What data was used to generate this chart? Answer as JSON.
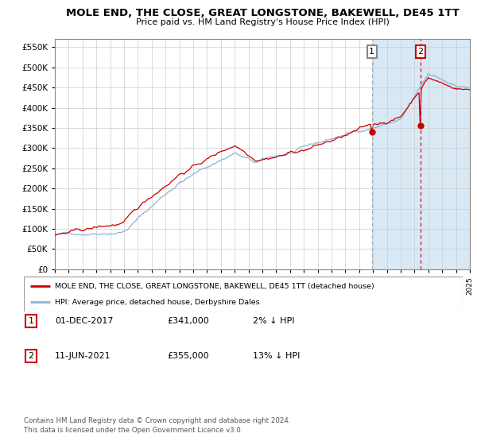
{
  "title": "MOLE END, THE CLOSE, GREAT LONGSTONE, BAKEWELL, DE45 1TT",
  "subtitle": "Price paid vs. HM Land Registry's House Price Index (HPI)",
  "hpi_color": "#8ab4d4",
  "price_color": "#cc0000",
  "marker_color": "#cc0000",
  "vline1_color": "#aaaaaa",
  "vline2_color": "#cc0000",
  "shade_color": "#d8e8f5",
  "ylim": [
    0,
    570000
  ],
  "yticks": [
    0,
    50000,
    100000,
    150000,
    200000,
    250000,
    300000,
    350000,
    400000,
    450000,
    500000,
    550000
  ],
  "ytick_labels": [
    "£0",
    "£50K",
    "£100K",
    "£150K",
    "£200K",
    "£250K",
    "£300K",
    "£350K",
    "£400K",
    "£450K",
    "£500K",
    "£550K"
  ],
  "sale1_year": 2017.92,
  "sale1_price": 341000,
  "sale1_label": "01-DEC-2017",
  "sale1_hpi_pct": "2% ↓ HPI",
  "sale2_year": 2021.44,
  "sale2_price": 355000,
  "sale2_label": "11-JUN-2021",
  "sale2_hpi_pct": "13% ↓ HPI",
  "legend_line1": "MOLE END, THE CLOSE, GREAT LONGSTONE, BAKEWELL, DE45 1TT (detached house)",
  "legend_line2": "HPI: Average price, detached house, Derbyshire Dales",
  "footer1": "Contains HM Land Registry data © Crown copyright and database right 2024.",
  "footer2": "This data is licensed under the Open Government Licence v3.0.",
  "background_color": "#ffffff",
  "plot_bg_color": "#ffffff",
  "grid_color": "#cccccc",
  "start_year": 1995.0,
  "end_year": 2025.0,
  "seed": 42
}
